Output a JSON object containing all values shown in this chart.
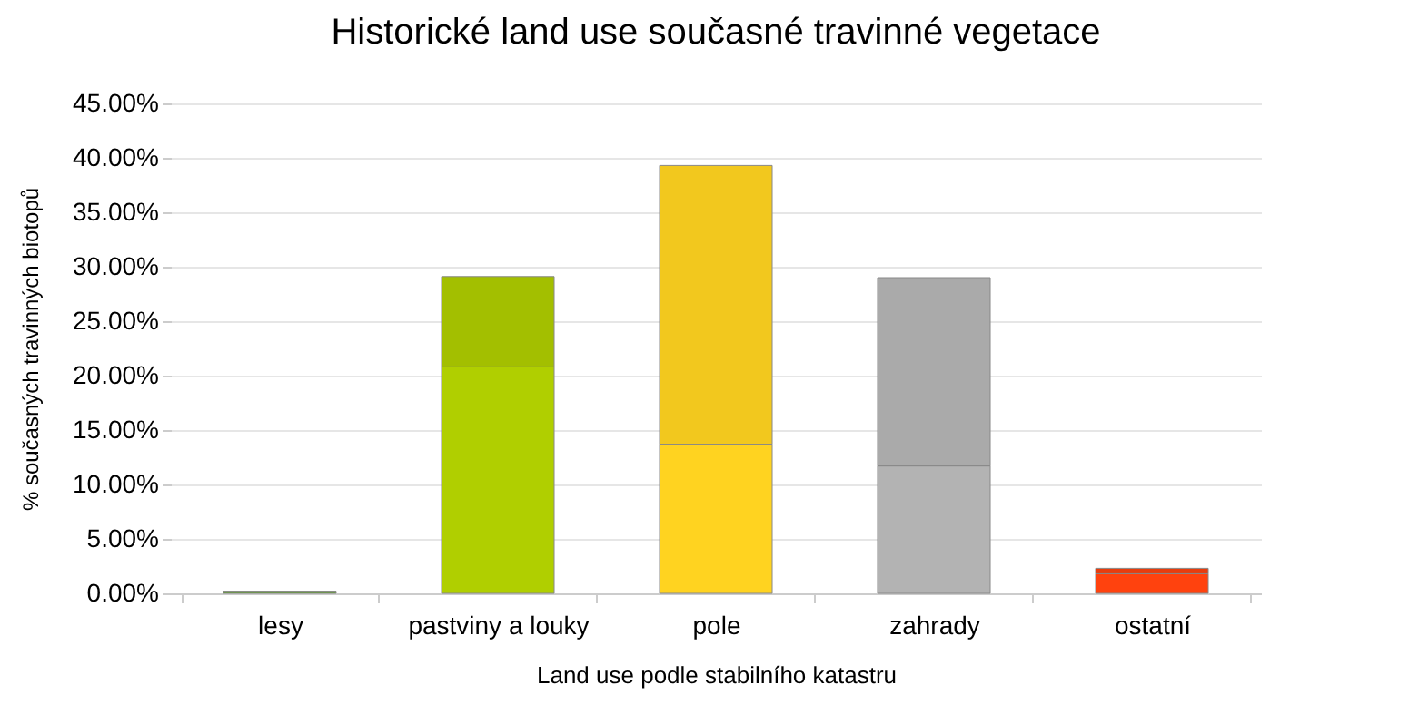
{
  "chart_data": {
    "type": "bar",
    "title": "Historické land use současné travinné vegetace",
    "xlabel": "Land use podle stabilního katastru",
    "ylabel": "% současných travinných biotopů",
    "categories": [
      "lesy",
      "pastviny a louky",
      "pole",
      "zahrady",
      "ostatní"
    ],
    "stacked": true,
    "series": [
      {
        "colors": [
          "#579d1c",
          "#b0cf00",
          "#ffd320",
          "#b3b3b3",
          "#ff420e"
        ],
        "values": [
          0.2,
          20.8,
          13.7,
          11.7,
          1.8
        ]
      },
      {
        "colors": [
          null,
          "#a3bf00",
          "#f2c81e",
          "#aaaaaa",
          "#e83c0d"
        ],
        "values": [
          null,
          8.3,
          25.6,
          17.3,
          0.5
        ]
      }
    ],
    "ylim": [
      0,
      45
    ],
    "yticks": [
      {
        "value": 0,
        "label": "0.00%"
      },
      {
        "value": 5,
        "label": "5.00%"
      },
      {
        "value": 10,
        "label": "10.00%"
      },
      {
        "value": 15,
        "label": "15.00%"
      },
      {
        "value": 20,
        "label": "20.00%"
      },
      {
        "value": 25,
        "label": "25.00%"
      },
      {
        "value": 30,
        "label": "30.00%"
      },
      {
        "value": 35,
        "label": "35.00%"
      },
      {
        "value": 40,
        "label": "40.00%"
      },
      {
        "value": 45,
        "label": "45.00%"
      }
    ],
    "grid": "y"
  }
}
